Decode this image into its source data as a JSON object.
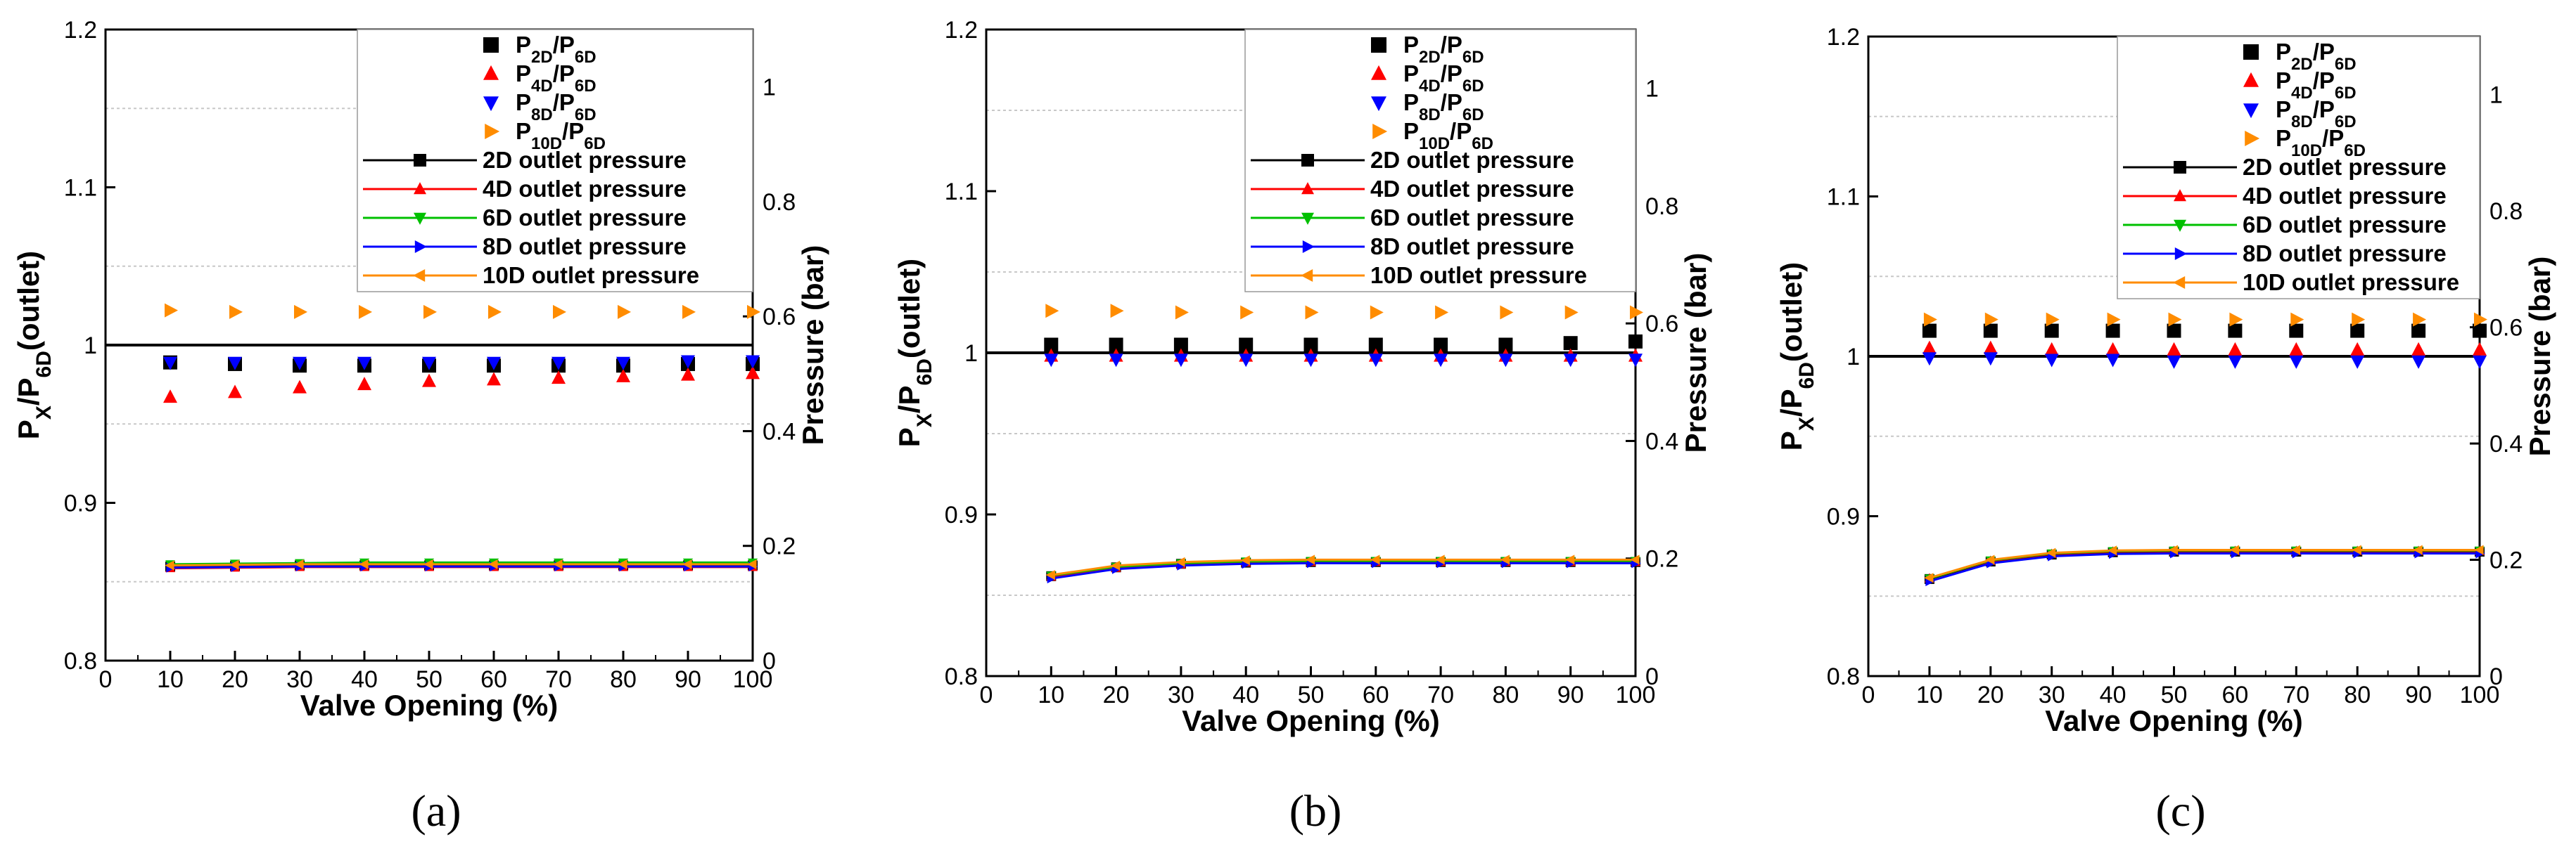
{
  "colors": {
    "P2D": "#000000",
    "P4D": "#ff0000",
    "P8D": "#0000ff",
    "P10D": "#ff8c00",
    "out2D": "#000000",
    "out4D": "#ff0000",
    "out6D": "#00c000",
    "out8D": "#0000ff",
    "out10D": "#ff8c00"
  },
  "chart_data": [
    {
      "panel_label": "(a)",
      "type": "scatter+line",
      "xlabel": "Valve Opening (%)",
      "ylabel_left": {
        "base": "P",
        "sub1": "X",
        "mid": "/P",
        "sub2": "6D",
        "tail": "(outlet)"
      },
      "ylabel_right": "Pressure (bar)",
      "xlim": [
        0,
        100
      ],
      "xticks": [
        "0",
        "10",
        "20",
        "30",
        "40",
        "50",
        "60",
        "70",
        "80",
        "90",
        "100"
      ],
      "ylim_left": [
        0.8,
        1.2
      ],
      "yticks_left": [
        "0.8",
        "0.9",
        "1",
        "1.1",
        "1.2"
      ],
      "ylim_right": [
        0,
        1.1
      ],
      "yticks_right": [
        "0",
        "0.2",
        "0.4",
        "0.6",
        "0.8",
        "1"
      ],
      "reference_line": 1.0,
      "x": [
        10,
        20,
        30,
        40,
        50,
        60,
        70,
        80,
        90,
        100
      ],
      "ratio_series": [
        {
          "name": "P2D/P6D",
          "values": [
            0.989,
            0.988,
            0.987,
            0.987,
            0.987,
            0.987,
            0.987,
            0.987,
            0.988,
            0.988
          ]
        },
        {
          "name": "P4D/P6D",
          "values": [
            0.967,
            0.97,
            0.973,
            0.975,
            0.977,
            0.978,
            0.979,
            0.98,
            0.981,
            0.982
          ]
        },
        {
          "name": "P8D/P6D",
          "values": [
            0.989,
            0.989,
            0.989,
            0.989,
            0.989,
            0.989,
            0.989,
            0.989,
            0.99,
            0.99
          ]
        },
        {
          "name": "P10D/P6D",
          "values": [
            1.022,
            1.021,
            1.021,
            1.021,
            1.021,
            1.021,
            1.021,
            1.021,
            1.021,
            1.021
          ]
        }
      ],
      "pressure_series": [
        {
          "name": "2D outlet pressure",
          "values": [
            0.164,
            0.165,
            0.166,
            0.166,
            0.166,
            0.166,
            0.166,
            0.166,
            0.166,
            0.166
          ]
        },
        {
          "name": "4D outlet pressure",
          "values": [
            0.161,
            0.162,
            0.163,
            0.163,
            0.163,
            0.163,
            0.163,
            0.163,
            0.163,
            0.163
          ]
        },
        {
          "name": "6D outlet pressure",
          "values": [
            0.168,
            0.169,
            0.17,
            0.171,
            0.171,
            0.171,
            0.171,
            0.171,
            0.171,
            0.171
          ]
        },
        {
          "name": "8D outlet pressure",
          "values": [
            0.162,
            0.163,
            0.164,
            0.164,
            0.164,
            0.164,
            0.164,
            0.164,
            0.164,
            0.164
          ]
        },
        {
          "name": "10D outlet pressure",
          "values": [
            0.166,
            0.167,
            0.168,
            0.168,
            0.168,
            0.168,
            0.168,
            0.168,
            0.168,
            0.168
          ]
        }
      ]
    },
    {
      "panel_label": "(b)",
      "type": "scatter+line",
      "xlabel": "Valve Opening (%)",
      "ylabel_left": {
        "base": "P",
        "sub1": "X",
        "mid": "/P",
        "sub2": "6D",
        "tail": "(outlet)"
      },
      "ylabel_right": "Pressure (bar)",
      "xlim": [
        0,
        100
      ],
      "xticks": [
        "0",
        "10",
        "20",
        "30",
        "40",
        "50",
        "60",
        "70",
        "80",
        "90",
        "100"
      ],
      "ylim_left": [
        0.8,
        1.2
      ],
      "yticks_left": [
        "0.8",
        "0.9",
        "1",
        "1.1",
        "1.2"
      ],
      "ylim_right": [
        0,
        1.1
      ],
      "yticks_right": [
        "0",
        "0.2",
        "0.4",
        "0.6",
        "0.8",
        "1"
      ],
      "reference_line": 1.0,
      "x": [
        10,
        20,
        30,
        40,
        50,
        60,
        70,
        80,
        90,
        100
      ],
      "ratio_series": [
        {
          "name": "P2D/P6D",
          "values": [
            1.005,
            1.005,
            1.005,
            1.005,
            1.005,
            1.005,
            1.005,
            1.005,
            1.006,
            1.007
          ]
        },
        {
          "name": "P4D/P6D",
          "values": [
            0.998,
            0.998,
            0.998,
            0.998,
            0.998,
            0.998,
            0.998,
            0.998,
            0.998,
            0.998
          ]
        },
        {
          "name": "P8D/P6D",
          "values": [
            0.996,
            0.996,
            0.996,
            0.996,
            0.996,
            0.996,
            0.996,
            0.996,
            0.996,
            0.996
          ]
        },
        {
          "name": "P10D/P6D",
          "values": [
            1.026,
            1.026,
            1.025,
            1.025,
            1.025,
            1.025,
            1.025,
            1.025,
            1.025,
            1.025
          ]
        }
      ],
      "pressure_series": [
        {
          "name": "2D outlet pressure",
          "values": [
            0.17,
            0.185,
            0.191,
            0.193,
            0.194,
            0.194,
            0.194,
            0.194,
            0.194,
            0.194
          ]
        },
        {
          "name": "4D outlet pressure",
          "values": [
            0.169,
            0.184,
            0.19,
            0.193,
            0.194,
            0.194,
            0.194,
            0.194,
            0.194,
            0.194
          ]
        },
        {
          "name": "6D outlet pressure",
          "values": [
            0.171,
            0.186,
            0.192,
            0.195,
            0.196,
            0.196,
            0.196,
            0.196,
            0.196,
            0.196
          ]
        },
        {
          "name": "8D outlet pressure",
          "values": [
            0.166,
            0.182,
            0.188,
            0.191,
            0.192,
            0.192,
            0.192,
            0.192,
            0.192,
            0.192
          ]
        },
        {
          "name": "10D outlet pressure",
          "values": [
            0.172,
            0.188,
            0.194,
            0.197,
            0.198,
            0.198,
            0.198,
            0.198,
            0.198,
            0.198
          ]
        }
      ]
    },
    {
      "panel_label": "(c)",
      "type": "scatter+line",
      "xlabel": "Valve Opening (%)",
      "ylabel_left": {
        "base": "P",
        "sub1": "X",
        "mid": "/P",
        "sub2": "6D",
        "tail": "(outlet)"
      },
      "ylabel_right": "Pressure (bar)",
      "xlim": [
        0,
        100
      ],
      "xticks": [
        "0",
        "10",
        "20",
        "30",
        "40",
        "50",
        "60",
        "70",
        "80",
        "90",
        "100"
      ],
      "ylim_left": [
        0.8,
        1.2
      ],
      "yticks_left": [
        "0.8",
        "0.9",
        "1",
        "1.1",
        "1.2"
      ],
      "ylim_right": [
        0,
        1.1
      ],
      "yticks_right": [
        "0",
        "0.2",
        "0.4",
        "0.6",
        "0.8",
        "1"
      ],
      "reference_line": 1.0,
      "x": [
        10,
        20,
        30,
        40,
        50,
        60,
        70,
        80,
        90,
        100
      ],
      "ratio_series": [
        {
          "name": "P2D/P6D",
          "values": [
            1.016,
            1.016,
            1.016,
            1.016,
            1.016,
            1.016,
            1.016,
            1.016,
            1.016,
            1.016
          ]
        },
        {
          "name": "P4D/P6D",
          "values": [
            1.005,
            1.005,
            1.004,
            1.004,
            1.004,
            1.004,
            1.004,
            1.004,
            1.004,
            1.004
          ]
        },
        {
          "name": "P8D/P6D",
          "values": [
            0.999,
            0.999,
            0.998,
            0.998,
            0.997,
            0.997,
            0.997,
            0.997,
            0.997,
            0.997
          ]
        },
        {
          "name": "P10D/P6D",
          "values": [
            1.023,
            1.023,
            1.023,
            1.023,
            1.023,
            1.023,
            1.023,
            1.023,
            1.023,
            1.023
          ]
        }
      ],
      "pressure_series": [
        {
          "name": "2D outlet pressure",
          "values": [
            0.167,
            0.197,
            0.209,
            0.213,
            0.214,
            0.214,
            0.214,
            0.214,
            0.214,
            0.214
          ]
        },
        {
          "name": "4D outlet pressure",
          "values": [
            0.168,
            0.198,
            0.21,
            0.214,
            0.215,
            0.215,
            0.215,
            0.215,
            0.215,
            0.215
          ]
        },
        {
          "name": "6D outlet pressure",
          "values": [
            0.168,
            0.199,
            0.211,
            0.215,
            0.216,
            0.216,
            0.216,
            0.216,
            0.216,
            0.216
          ]
        },
        {
          "name": "8D outlet pressure",
          "values": [
            0.163,
            0.194,
            0.206,
            0.21,
            0.211,
            0.211,
            0.211,
            0.211,
            0.211,
            0.211
          ]
        },
        {
          "name": "10D outlet pressure",
          "values": [
            0.169,
            0.2,
            0.212,
            0.216,
            0.217,
            0.217,
            0.217,
            0.217,
            0.217,
            0.217
          ]
        }
      ]
    }
  ],
  "legend": {
    "ratio": [
      {
        "base": "P",
        "sub": "2D",
        "mid": "/P",
        "sub2": "6D",
        "marker": "square",
        "color": "#000000"
      },
      {
        "base": "P",
        "sub": "4D",
        "mid": "/P",
        "sub2": "6D",
        "marker": "triangle-up",
        "color": "#ff0000"
      },
      {
        "base": "P",
        "sub": "8D",
        "mid": "/P",
        "sub2": "6D",
        "marker": "triangle-down",
        "color": "#0000ff"
      },
      {
        "base": "P",
        "sub": "10D",
        "mid": "/P",
        "sub2": "6D",
        "marker": "triangle-right",
        "color": "#ff8c00"
      }
    ],
    "pressure": [
      {
        "label": "2D outlet pressure",
        "marker": "square",
        "color": "#000000"
      },
      {
        "label": "4D outlet pressure",
        "marker": "triangle-up",
        "color": "#ff0000"
      },
      {
        "label": "6D outlet pressure",
        "marker": "triangle-down",
        "color": "#00c000"
      },
      {
        "label": "8D outlet pressure",
        "marker": "triangle-right",
        "color": "#0000ff"
      },
      {
        "label": "10D outlet pressure",
        "marker": "triangle-left",
        "color": "#ff8c00"
      }
    ]
  }
}
